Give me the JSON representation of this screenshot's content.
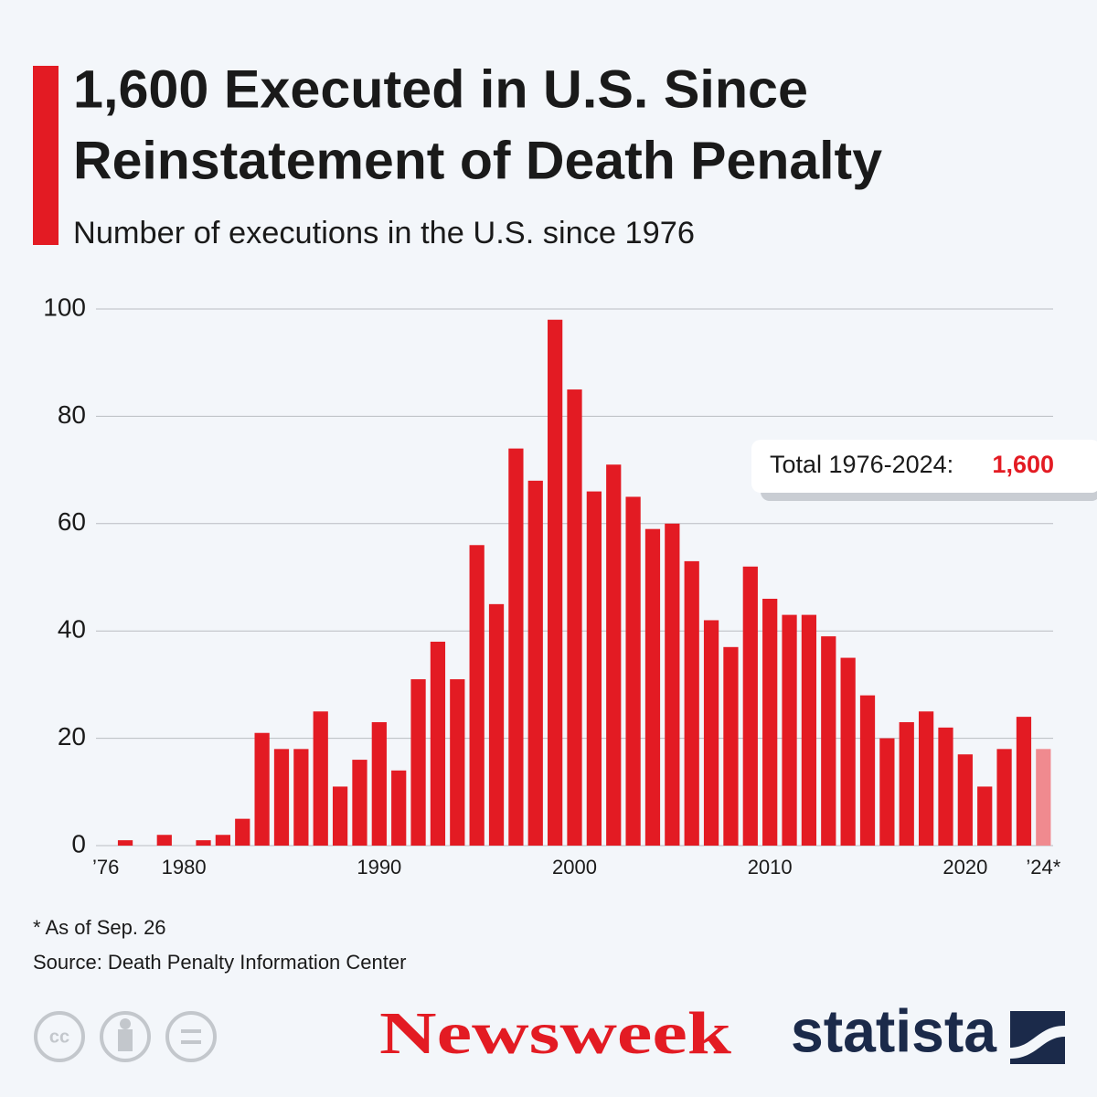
{
  "chart_data": {
    "type": "bar",
    "title": [
      "1,600 Executed in U.S. Since",
      "Reinstatement of Death Penalty"
    ],
    "subtitle": "Number of executions in the U.S. since 1976",
    "categories": [
      "’76",
      null,
      null,
      null,
      "1980",
      null,
      null,
      null,
      null,
      null,
      null,
      null,
      null,
      null,
      "1990",
      null,
      null,
      null,
      null,
      null,
      null,
      null,
      null,
      null,
      "2000",
      null,
      null,
      null,
      null,
      null,
      null,
      null,
      null,
      null,
      "2010",
      null,
      null,
      null,
      null,
      null,
      null,
      null,
      null,
      null,
      "2020",
      null,
      null,
      null,
      "’24*"
    ],
    "values": [
      0,
      1,
      0,
      2,
      0,
      1,
      2,
      5,
      21,
      18,
      18,
      25,
      11,
      16,
      23,
      14,
      31,
      38,
      31,
      56,
      45,
      74,
      68,
      98,
      85,
      66,
      71,
      65,
      59,
      60,
      53,
      42,
      37,
      52,
      46,
      43,
      43,
      39,
      35,
      28,
      20,
      23,
      25,
      22,
      17,
      11,
      18,
      24,
      18
    ],
    "colors": [
      "#e31b23",
      "#e31b23",
      "#e31b23",
      "#e31b23",
      "#e31b23",
      "#e31b23",
      "#e31b23",
      "#e31b23",
      "#e31b23",
      "#e31b23",
      "#e31b23",
      "#e31b23",
      "#e31b23",
      "#e31b23",
      "#e31b23",
      "#e31b23",
      "#e31b23",
      "#e31b23",
      "#e31b23",
      "#e31b23",
      "#e31b23",
      "#e31b23",
      "#e31b23",
      "#e31b23",
      "#e31b23",
      "#e31b23",
      "#e31b23",
      "#e31b23",
      "#e31b23",
      "#e31b23",
      "#e31b23",
      "#e31b23",
      "#e31b23",
      "#e31b23",
      "#e31b23",
      "#e31b23",
      "#e31b23",
      "#e31b23",
      "#e31b23",
      "#e31b23",
      "#e31b23",
      "#e31b23",
      "#e31b23",
      "#e31b23",
      "#e31b23",
      "#e31b23",
      "#e31b23",
      "#e31b23",
      "#f08a8f"
    ],
    "ylim": [
      0,
      100
    ],
    "yticks": [
      0,
      20,
      40,
      60,
      80,
      100
    ],
    "grid": true,
    "annotation": {
      "label": "Total 1976-2024:",
      "value": "1,600"
    },
    "footnote": "* As of Sep. 26",
    "source": "Source: Death Penalty Information Center"
  },
  "footer": {
    "publisher": "Newsweek",
    "brand": "statista"
  }
}
